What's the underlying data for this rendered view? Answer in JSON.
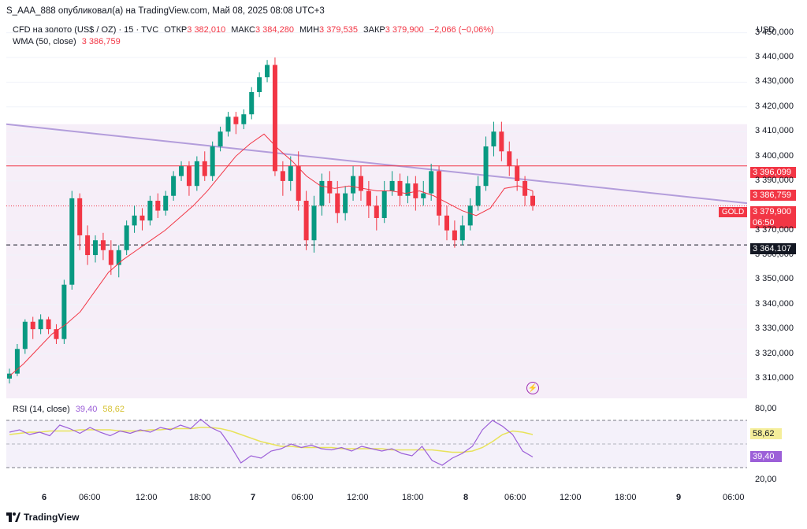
{
  "header": {
    "publisher": "S_AAA_888 опубликовал(а) на TradingView.com, Май 08, 2025 08:08 UTC+3"
  },
  "legend": {
    "symbol": "CFD на золото (US$ / OZ) · 15 · TVC",
    "open_label": "ОТКР",
    "open": "3 382,010",
    "high_label": "МАКС",
    "high": "3 384,280",
    "low_label": "МИН",
    "low": "3 379,535",
    "close_label": "ЗАКР",
    "close": "3 379,900",
    "change": "−2,066 (−0,06%)",
    "wma_label": "WMA (50, close)",
    "wma_value": "3 386,759",
    "rsi_label": "RSI (14, close)",
    "rsi_value": "39,40",
    "rsi_ma": "58,62"
  },
  "currency": "USD",
  "y_axis": {
    "ticks": [
      "3 450,000",
      "3 440,000",
      "3 430,000",
      "3 420,000",
      "3 410,000",
      "3 400,000",
      "3 390,000",
      "3 370,000",
      "3 360,000",
      "3 350,000",
      "3 340,000",
      "3 330,000",
      "3 320,000",
      "3 310,000"
    ],
    "badges": {
      "hline": "3 396,099",
      "wma": "3 386,759",
      "price": "3 379,900",
      "countdown": "06:50",
      "dashed": "3 364,107"
    },
    "rsi_ticks": [
      "80,00",
      "20,00"
    ],
    "rsi_badges": {
      "ma": "58,62",
      "rsi": "39,40"
    }
  },
  "symbol_tag": "GOLD",
  "x_axis": [
    {
      "label": "6",
      "bold": true
    },
    {
      "label": "06:00"
    },
    {
      "label": "12:00"
    },
    {
      "label": "18:00"
    },
    {
      "label": "7",
      "bold": true
    },
    {
      "label": "06:00"
    },
    {
      "label": "12:00"
    },
    {
      "label": "18:00"
    },
    {
      "label": "8",
      "bold": true
    },
    {
      "label": "06:00"
    },
    {
      "label": "12:00"
    },
    {
      "label": "18:00"
    },
    {
      "label": "9",
      "bold": true
    },
    {
      "label": "06:00"
    }
  ],
  "footer": {
    "brand": "TradingView"
  },
  "colors": {
    "up": "#089981",
    "down": "#f23645",
    "wma": "#f23645",
    "trend": "#b39ddb",
    "rsi": "#9c5fd8",
    "rsi_ma": "#e8e35a"
  },
  "chart_data": {
    "type": "candlestick",
    "price_range": [
      3302,
      3455
    ],
    "wma": [
      3311,
      3316,
      3322,
      3328,
      3332,
      3337,
      3345,
      3353,
      3358,
      3362,
      3366,
      3370,
      3375,
      3380,
      3386,
      3393,
      3400,
      3405,
      3409,
      3403,
      3398,
      3392,
      3388,
      3387,
      3388,
      3387,
      3386,
      3386,
      3385,
      3386,
      3384,
      3381,
      3378,
      3376,
      3379,
      3387,
      3388,
      3386
    ],
    "candles": [
      [
        3310,
        3312,
        3308,
        3314
      ],
      [
        3312,
        3322,
        3311,
        3324
      ],
      [
        3322,
        3333,
        3320,
        3334
      ],
      [
        3333,
        3330,
        3326,
        3335
      ],
      [
        3330,
        3334,
        3328,
        3336
      ],
      [
        3334,
        3330,
        3328,
        3335
      ],
      [
        3330,
        3326,
        3324,
        3332
      ],
      [
        3326,
        3348,
        3324,
        3350
      ],
      [
        3348,
        3383,
        3346,
        3386
      ],
      [
        3383,
        3368,
        3362,
        3385
      ],
      [
        3368,
        3360,
        3356,
        3372
      ],
      [
        3360,
        3366,
        3357,
        3368
      ],
      [
        3366,
        3362,
        3358,
        3369
      ],
      [
        3362,
        3356,
        3352,
        3366
      ],
      [
        3356,
        3362,
        3351,
        3364
      ],
      [
        3362,
        3372,
        3360,
        3374
      ],
      [
        3372,
        3376,
        3369,
        3380
      ],
      [
        3376,
        3374,
        3370,
        3379
      ],
      [
        3374,
        3382,
        3372,
        3384
      ],
      [
        3382,
        3378,
        3375,
        3385
      ],
      [
        3378,
        3384,
        3376,
        3386
      ],
      [
        3384,
        3392,
        3382,
        3394
      ],
      [
        3392,
        3396,
        3390,
        3398
      ],
      [
        3396,
        3388,
        3384,
        3398
      ],
      [
        3388,
        3398,
        3386,
        3400
      ],
      [
        3398,
        3392,
        3390,
        3402
      ],
      [
        3392,
        3404,
        3390,
        3406
      ],
      [
        3404,
        3410,
        3402,
        3412
      ],
      [
        3410,
        3416,
        3408,
        3418
      ],
      [
        3416,
        3413,
        3409,
        3418
      ],
      [
        3413,
        3417,
        3411,
        3419
      ],
      [
        3417,
        3426,
        3415,
        3428
      ],
      [
        3426,
        3432,
        3424,
        3434
      ],
      [
        3432,
        3437,
        3430,
        3439
      ],
      [
        3437,
        3394,
        3392,
        3440
      ],
      [
        3394,
        3390,
        3384,
        3398
      ],
      [
        3390,
        3396,
        3386,
        3400
      ],
      [
        3396,
        3382,
        3378,
        3402
      ],
      [
        3382,
        3366,
        3362,
        3386
      ],
      [
        3366,
        3380,
        3361,
        3384
      ],
      [
        3380,
        3390,
        3376,
        3393
      ],
      [
        3390,
        3385,
        3381,
        3394
      ],
      [
        3385,
        3377,
        3373,
        3390
      ],
      [
        3377,
        3385,
        3374,
        3388
      ],
      [
        3385,
        3392,
        3382,
        3396
      ],
      [
        3392,
        3386,
        3382,
        3396
      ],
      [
        3386,
        3380,
        3375,
        3390
      ],
      [
        3380,
        3375,
        3370,
        3384
      ],
      [
        3375,
        3386,
        3373,
        3390
      ],
      [
        3386,
        3390,
        3384,
        3394
      ],
      [
        3390,
        3384,
        3380,
        3393
      ],
      [
        3384,
        3389,
        3381,
        3392
      ],
      [
        3389,
        3383,
        3378,
        3392
      ],
      [
        3383,
        3385,
        3380,
        3390
      ],
      [
        3385,
        3394,
        3382,
        3397
      ],
      [
        3394,
        3376,
        3372,
        3396
      ],
      [
        3376,
        3370,
        3366,
        3380
      ],
      [
        3370,
        3366,
        3363,
        3374
      ],
      [
        3366,
        3372,
        3364,
        3376
      ],
      [
        3372,
        3380,
        3370,
        3383
      ],
      [
        3380,
        3388,
        3378,
        3392
      ],
      [
        3388,
        3404,
        3386,
        3408
      ],
      [
        3404,
        3410,
        3400,
        3414
      ],
      [
        3410,
        3402,
        3398,
        3414
      ],
      [
        3402,
        3396,
        3392,
        3406
      ],
      [
        3396,
        3390,
        3386,
        3399
      ],
      [
        3390,
        3384,
        3380,
        3392
      ],
      [
        3384,
        3380,
        3378,
        3386
      ]
    ],
    "rsi": [
      60,
      62,
      58,
      60,
      57,
      66,
      63,
      59,
      64,
      60,
      57,
      61,
      59,
      62,
      60,
      64,
      62,
      66,
      63,
      71,
      64,
      60,
      48,
      34,
      40,
      38,
      44,
      46,
      50,
      47,
      49,
      46,
      45,
      47,
      44,
      48,
      46,
      44,
      46,
      42,
      40,
      48,
      36,
      32,
      38,
      42,
      48,
      62,
      70,
      65,
      58,
      44,
      39
    ],
    "rsi_ma": [
      58,
      59,
      60,
      60,
      61,
      61,
      61,
      62,
      62,
      62,
      62,
      61,
      61,
      61,
      62,
      62,
      63,
      63,
      63,
      64,
      64,
      63,
      61,
      58,
      55,
      52,
      50,
      48,
      48,
      47,
      47,
      47,
      47,
      46,
      46,
      46,
      46,
      46,
      45,
      45,
      45,
      45,
      45,
      44,
      43,
      43,
      44,
      47,
      52,
      58,
      61,
      60,
      58
    ],
    "rsi_range": [
      0,
      100
    ]
  }
}
